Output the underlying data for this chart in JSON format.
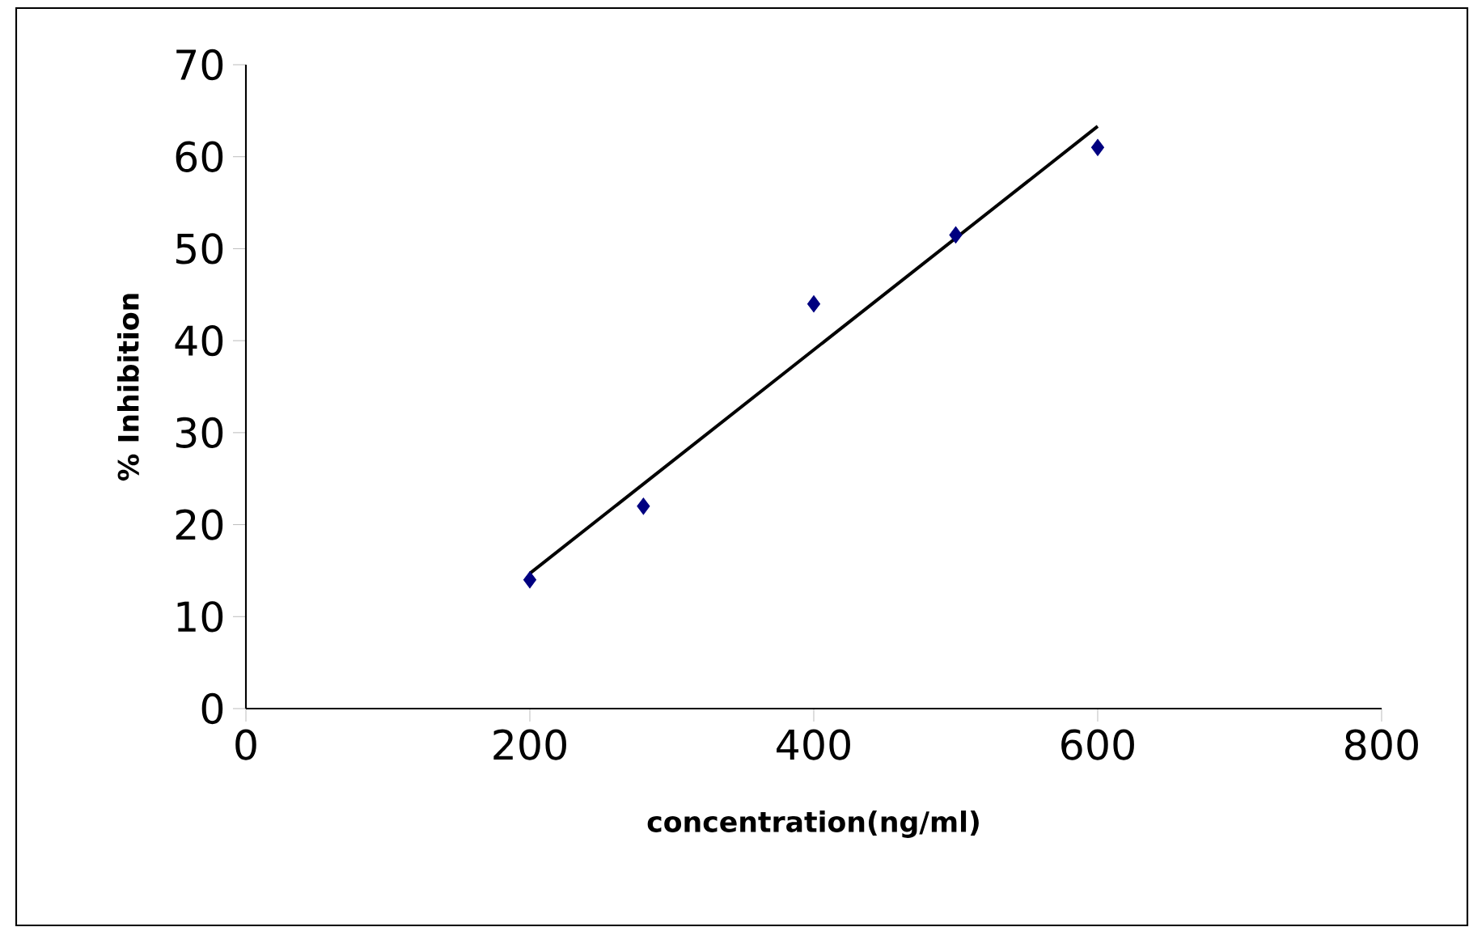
{
  "chart_data": {
    "type": "scatter",
    "xlabel": "concentration(ng/ml)",
    "ylabel": "% Inhibition",
    "x": [
      200,
      280,
      400,
      500,
      600
    ],
    "series": [
      {
        "color": "#000080",
        "values": [
          14,
          22,
          44,
          51.5,
          61
        ],
        "marker": "diamond"
      },
      {
        "type": "line",
        "color": "#000000",
        "x": [
          200,
          600
        ],
        "values": [
          14.7,
          63.3
        ],
        "marker": "none",
        "line_style": "solid"
      }
    ],
    "xlim": [
      0,
      800
    ],
    "xticks": [
      0,
      200,
      400,
      600,
      800
    ],
    "ylim": [
      0,
      70
    ],
    "yticks": [
      0,
      10,
      20,
      30,
      40,
      50,
      60,
      70
    ]
  }
}
